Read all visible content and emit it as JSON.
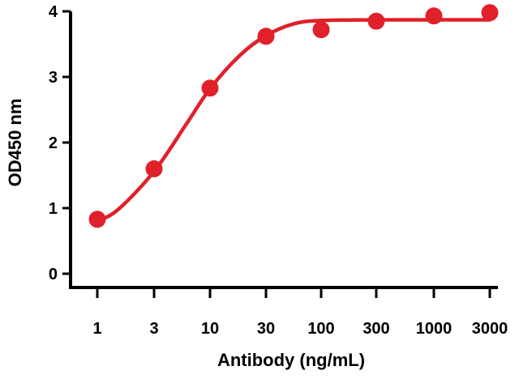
{
  "chart_data": {
    "type": "scatter",
    "title": "",
    "xlabel": "Antibody (ng/mL)",
    "ylabel": "OD450 nm",
    "x_scale": "log",
    "x_ticks": [
      1,
      3,
      10,
      30,
      100,
      300,
      1000,
      3000
    ],
    "x_tick_labels": [
      "1",
      "3",
      "10",
      "30",
      "100",
      "300",
      "1000",
      "3000"
    ],
    "y_ticks": [
      0,
      1,
      2,
      3,
      4
    ],
    "y_tick_labels": [
      "0",
      "1",
      "2",
      "3",
      "4"
    ],
    "ylim": [
      0,
      4
    ],
    "grid": false,
    "legend": "none",
    "series": [
      {
        "points": [
          {
            "x": 1,
            "y": 0.83
          },
          {
            "x": 3,
            "y": 1.6
          },
          {
            "x": 10,
            "y": 2.83
          },
          {
            "x": 30,
            "y": 3.62
          },
          {
            "x": 100,
            "y": 3.72
          },
          {
            "x": 300,
            "y": 3.85
          },
          {
            "x": 1000,
            "y": 3.93
          },
          {
            "x": 3000,
            "y": 3.98
          }
        ],
        "fit_curve": [
          {
            "x": 1,
            "y": 0.8
          },
          {
            "x": 1.5,
            "y": 0.98
          },
          {
            "x": 3,
            "y": 1.56
          },
          {
            "x": 6,
            "y": 2.28
          },
          {
            "x": 10,
            "y": 2.82
          },
          {
            "x": 18,
            "y": 3.33
          },
          {
            "x": 30,
            "y": 3.63
          },
          {
            "x": 55,
            "y": 3.81
          },
          {
            "x": 100,
            "y": 3.86
          },
          {
            "x": 300,
            "y": 3.87
          },
          {
            "x": 1000,
            "y": 3.87
          },
          {
            "x": 3000,
            "y": 3.87
          }
        ]
      }
    ],
    "colors": {
      "series": "#e0202a",
      "axis": "#000000"
    }
  }
}
